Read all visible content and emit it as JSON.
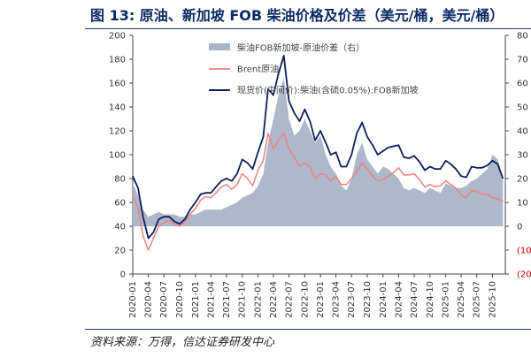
{
  "figure": {
    "title": "图 13:  原油、新加坡 FOB 柴油价格及价差（美元/桶，美元/桶）",
    "source": "资料来源：万得，信达证券研发中心"
  },
  "chart_data": {
    "type": "line",
    "title": "图 13:  原油、新加坡 FOB 柴油价格及价差（美元/桶，美元/桶）",
    "left_axis": {
      "ylim": [
        0,
        200
      ],
      "ticks": [
        "0",
        "20",
        "40",
        "60",
        "80",
        "100",
        "120",
        "140",
        "160",
        "180",
        "200"
      ]
    },
    "right_axis": {
      "ylim": [
        -20,
        80
      ],
      "ticks": [
        "(20)",
        "(10)",
        "0",
        "10",
        "20",
        "30",
        "40",
        "50",
        "60",
        "70",
        "80"
      ],
      "negative_color": "#c00000"
    },
    "x_ticks": [
      "2020-01",
      "2020-04",
      "2020-07",
      "2020-10",
      "2021-01",
      "2021-04",
      "2021-07",
      "2021-10",
      "2022-01",
      "2022-04",
      "2022-07",
      "2022-10",
      "2023-01",
      "2023-04",
      "2023-07",
      "2023-10",
      "2024-01",
      "2024-04",
      "2024-07",
      "2024-10",
      "2025-01",
      "2025-04",
      "2025-07",
      "2025-10"
    ],
    "legend_placement": "top",
    "grid": false,
    "series": [
      {
        "name": "柴油FOB新加坡-原油价差（右）",
        "type": "area",
        "axis": "right",
        "color": "#aab4c8",
        "points": [
          [
            "2020-01-01",
            18
          ],
          [
            "2020-02-01",
            13
          ],
          [
            "2020-03-01",
            7
          ],
          [
            "2020-04-01",
            4
          ],
          [
            "2020-05-01",
            5
          ],
          [
            "2020-06-01",
            6
          ],
          [
            "2020-07-01",
            5
          ],
          [
            "2020-08-01",
            5
          ],
          [
            "2020-09-01",
            5
          ],
          [
            "2020-10-01",
            4
          ],
          [
            "2020-11-01",
            4
          ],
          [
            "2020-12-01",
            5
          ],
          [
            "2021-01-01",
            5
          ],
          [
            "2021-02-01",
            6
          ],
          [
            "2021-03-01",
            7
          ],
          [
            "2021-04-01",
            7
          ],
          [
            "2021-05-01",
            7
          ],
          [
            "2021-06-01",
            7
          ],
          [
            "2021-07-01",
            8
          ],
          [
            "2021-08-01",
            9
          ],
          [
            "2021-09-01",
            10
          ],
          [
            "2021-10-01",
            12
          ],
          [
            "2021-11-01",
            13
          ],
          [
            "2021-12-01",
            14
          ],
          [
            "2022-01-01",
            17
          ],
          [
            "2022-02-01",
            22
          ],
          [
            "2022-03-01",
            35
          ],
          [
            "2022-04-01",
            45
          ],
          [
            "2022-05-01",
            55
          ],
          [
            "2022-06-01",
            62
          ],
          [
            "2022-07-01",
            45
          ],
          [
            "2022-08-01",
            38
          ],
          [
            "2022-09-01",
            40
          ],
          [
            "2022-10-01",
            45
          ],
          [
            "2022-11-01",
            40
          ],
          [
            "2022-12-01",
            35
          ],
          [
            "2023-01-01",
            38
          ],
          [
            "2023-02-01",
            30
          ],
          [
            "2023-03-01",
            25
          ],
          [
            "2023-04-01",
            22
          ],
          [
            "2023-05-01",
            17
          ],
          [
            "2023-06-01",
            15
          ],
          [
            "2023-07-01",
            20
          ],
          [
            "2023-08-01",
            30
          ],
          [
            "2023-09-01",
            35
          ],
          [
            "2023-10-01",
            28
          ],
          [
            "2023-11-01",
            25
          ],
          [
            "2023-12-01",
            22
          ],
          [
            "2024-01-01",
            25
          ],
          [
            "2024-02-01",
            24
          ],
          [
            "2024-03-01",
            22
          ],
          [
            "2024-04-01",
            20
          ],
          [
            "2024-05-01",
            16
          ],
          [
            "2024-06-01",
            15
          ],
          [
            "2024-07-01",
            16
          ],
          [
            "2024-08-01",
            15
          ],
          [
            "2024-09-01",
            14
          ],
          [
            "2024-10-01",
            16
          ],
          [
            "2024-11-01",
            15
          ],
          [
            "2024-12-01",
            14
          ],
          [
            "2025-01-01",
            18
          ],
          [
            "2025-02-01",
            17
          ],
          [
            "2025-03-01",
            16
          ],
          [
            "2025-04-01",
            16
          ],
          [
            "2025-05-01",
            17
          ],
          [
            "2025-06-01",
            19
          ],
          [
            "2025-07-01",
            20
          ],
          [
            "2025-08-01",
            22
          ],
          [
            "2025-09-01",
            24
          ],
          [
            "2025-10-01",
            30
          ],
          [
            "2025-11-01",
            28
          ],
          [
            "2025-12-01",
            20
          ]
        ]
      },
      {
        "name": "Brent原油",
        "type": "line",
        "axis": "left",
        "color": "#f08080",
        "points": [
          [
            "2020-01-01",
            66
          ],
          [
            "2020-02-01",
            55
          ],
          [
            "2020-03-01",
            32
          ],
          [
            "2020-04-01",
            20
          ],
          [
            "2020-05-01",
            30
          ],
          [
            "2020-06-01",
            40
          ],
          [
            "2020-07-01",
            43
          ],
          [
            "2020-08-01",
            45
          ],
          [
            "2020-09-01",
            42
          ],
          [
            "2020-10-01",
            40
          ],
          [
            "2020-11-01",
            44
          ],
          [
            "2020-12-01",
            50
          ],
          [
            "2021-01-01",
            55
          ],
          [
            "2021-02-01",
            62
          ],
          [
            "2021-03-01",
            65
          ],
          [
            "2021-04-01",
            64
          ],
          [
            "2021-05-01",
            68
          ],
          [
            "2021-06-01",
            73
          ],
          [
            "2021-07-01",
            75
          ],
          [
            "2021-08-01",
            71
          ],
          [
            "2021-09-01",
            75
          ],
          [
            "2021-10-01",
            84
          ],
          [
            "2021-11-01",
            80
          ],
          [
            "2021-12-01",
            74
          ],
          [
            "2022-01-01",
            87
          ],
          [
            "2022-02-01",
            95
          ],
          [
            "2022-03-01",
            118
          ],
          [
            "2022-04-01",
            105
          ],
          [
            "2022-05-01",
            112
          ],
          [
            "2022-06-01",
            118
          ],
          [
            "2022-07-01",
            105
          ],
          [
            "2022-08-01",
            98
          ],
          [
            "2022-09-01",
            90
          ],
          [
            "2022-10-01",
            93
          ],
          [
            "2022-11-01",
            90
          ],
          [
            "2022-12-01",
            80
          ],
          [
            "2023-01-01",
            84
          ],
          [
            "2023-02-01",
            83
          ],
          [
            "2023-03-01",
            78
          ],
          [
            "2023-04-01",
            82
          ],
          [
            "2023-05-01",
            75
          ],
          [
            "2023-06-01",
            75
          ],
          [
            "2023-07-01",
            80
          ],
          [
            "2023-08-01",
            86
          ],
          [
            "2023-09-01",
            93
          ],
          [
            "2023-10-01",
            88
          ],
          [
            "2023-11-01",
            82
          ],
          [
            "2023-12-01",
            78
          ],
          [
            "2024-01-01",
            79
          ],
          [
            "2024-02-01",
            82
          ],
          [
            "2024-03-01",
            85
          ],
          [
            "2024-04-01",
            89
          ],
          [
            "2024-05-01",
            83
          ],
          [
            "2024-06-01",
            83
          ],
          [
            "2024-07-01",
            84
          ],
          [
            "2024-08-01",
            79
          ],
          [
            "2024-09-01",
            73
          ],
          [
            "2024-10-01",
            75
          ],
          [
            "2024-11-01",
            73
          ],
          [
            "2024-12-01",
            74
          ],
          [
            "2025-01-01",
            78
          ],
          [
            "2025-02-01",
            75
          ],
          [
            "2025-03-01",
            72
          ],
          [
            "2025-04-01",
            66
          ],
          [
            "2025-05-01",
            64
          ],
          [
            "2025-06-01",
            70
          ],
          [
            "2025-07-01",
            69
          ],
          [
            "2025-08-01",
            67
          ],
          [
            "2025-09-01",
            67
          ],
          [
            "2025-10-01",
            64
          ],
          [
            "2025-11-01",
            63
          ],
          [
            "2025-12-01",
            61
          ]
        ]
      },
      {
        "name": "现货价(中间价):柴油(含硫0.05%):FOB新加坡",
        "type": "line",
        "axis": "left",
        "color": "#0d1f5c",
        "points": [
          [
            "2020-01-01",
            82
          ],
          [
            "2020-02-01",
            72
          ],
          [
            "2020-03-01",
            48
          ],
          [
            "2020-04-01",
            30
          ],
          [
            "2020-05-01",
            35
          ],
          [
            "2020-06-01",
            46
          ],
          [
            "2020-07-01",
            48
          ],
          [
            "2020-08-01",
            48
          ],
          [
            "2020-09-01",
            44
          ],
          [
            "2020-10-01",
            42
          ],
          [
            "2020-11-01",
            46
          ],
          [
            "2020-12-01",
            54
          ],
          [
            "2021-01-01",
            60
          ],
          [
            "2021-02-01",
            67
          ],
          [
            "2021-03-01",
            68
          ],
          [
            "2021-04-01",
            68
          ],
          [
            "2021-05-01",
            73
          ],
          [
            "2021-06-01",
            78
          ],
          [
            "2021-07-01",
            80
          ],
          [
            "2021-08-01",
            78
          ],
          [
            "2021-09-01",
            84
          ],
          [
            "2021-10-01",
            96
          ],
          [
            "2021-11-01",
            93
          ],
          [
            "2021-12-01",
            88
          ],
          [
            "2022-01-01",
            102
          ],
          [
            "2022-02-01",
            115
          ],
          [
            "2022-03-01",
            155
          ],
          [
            "2022-04-01",
            150
          ],
          [
            "2022-05-01",
            168
          ],
          [
            "2022-06-01",
            183
          ],
          [
            "2022-07-01",
            145
          ],
          [
            "2022-08-01",
            135
          ],
          [
            "2022-09-01",
            128
          ],
          [
            "2022-10-01",
            138
          ],
          [
            "2022-11-01",
            128
          ],
          [
            "2022-12-01",
            112
          ],
          [
            "2023-01-01",
            120
          ],
          [
            "2023-02-01",
            110
          ],
          [
            "2023-03-01",
            100
          ],
          [
            "2023-04-01",
            102
          ],
          [
            "2023-05-01",
            90
          ],
          [
            "2023-06-01",
            90
          ],
          [
            "2023-07-01",
            100
          ],
          [
            "2023-08-01",
            118
          ],
          [
            "2023-09-01",
            127
          ],
          [
            "2023-10-01",
            115
          ],
          [
            "2023-11-01",
            108
          ],
          [
            "2023-12-01",
            100
          ],
          [
            "2024-01-01",
            103
          ],
          [
            "2024-02-01",
            106
          ],
          [
            "2024-03-01",
            107
          ],
          [
            "2024-04-01",
            108
          ],
          [
            "2024-05-01",
            98
          ],
          [
            "2024-06-01",
            97
          ],
          [
            "2024-07-01",
            99
          ],
          [
            "2024-08-01",
            94
          ],
          [
            "2024-09-01",
            87
          ],
          [
            "2024-10-01",
            90
          ],
          [
            "2024-11-01",
            88
          ],
          [
            "2024-12-01",
            88
          ],
          [
            "2025-01-01",
            95
          ],
          [
            "2025-02-01",
            92
          ],
          [
            "2025-03-01",
            88
          ],
          [
            "2025-04-01",
            82
          ],
          [
            "2025-05-01",
            81
          ],
          [
            "2025-06-01",
            90
          ],
          [
            "2025-07-01",
            89
          ],
          [
            "2025-08-01",
            89
          ],
          [
            "2025-09-01",
            91
          ],
          [
            "2025-10-01",
            95
          ],
          [
            "2025-11-01",
            92
          ],
          [
            "2025-12-01",
            80
          ]
        ]
      }
    ]
  }
}
